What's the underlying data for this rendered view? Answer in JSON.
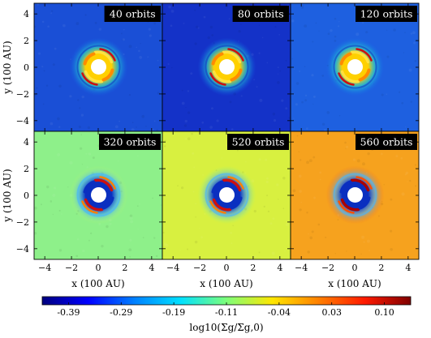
{
  "figure": {
    "panels": [
      {
        "label": "40 orbits",
        "background": "#1a4fd6",
        "ring": [
          [
            "#ffd000",
            1
          ],
          [
            "#22e0d0",
            0.6
          ],
          [
            "#1166ee",
            0.2
          ]
        ],
        "bands": [
          [
            "#ffe040",
            "#cc1010"
          ],
          [
            "#ff8c00",
            "#1530c0"
          ]
        ]
      },
      {
        "label": "80 orbits",
        "background": "#1432c8",
        "ring": [
          [
            "#ffd000",
            1
          ],
          [
            "#22e0d0",
            0.6
          ],
          [
            "#1166ee",
            0.2
          ]
        ],
        "bands": [
          [
            "#ffe040",
            "#cc1010"
          ],
          [
            "#ff8c00",
            "#1530c0"
          ]
        ]
      },
      {
        "label": "120 orbits",
        "background": "#1e60e0",
        "ring": [
          [
            "#ffd000",
            1
          ],
          [
            "#22e0d0",
            0.6
          ],
          [
            "#1166ee",
            0.2
          ]
        ],
        "bands": [
          [
            "#ffe040",
            "#cc1010"
          ],
          [
            "#ff8c00",
            "#1530c0"
          ]
        ]
      },
      {
        "label": "320 orbits",
        "background": "#8ef08a",
        "ring": [
          [
            "#0a2fc0",
            1
          ],
          [
            "#46b0ff",
            0.6
          ],
          [
            "#c8ff5a",
            0.3
          ]
        ],
        "bands": [
          [
            "#cc1010",
            "#ff8000"
          ],
          [
            "#0a2fc0",
            "#46b0ff"
          ]
        ]
      },
      {
        "label": "520 orbits",
        "background": "#d8f040",
        "ring": [
          [
            "#0a2fc0",
            1
          ],
          [
            "#46b0ff",
            0.6
          ],
          [
            "#a0ff70",
            0.3
          ]
        ],
        "bands": [
          [
            "#cc1010",
            "#ff8000"
          ],
          [
            "#0a2fc0",
            "#46b0ff"
          ]
        ]
      },
      {
        "label": "560 orbits",
        "background": "#f6a21e",
        "ring": [
          [
            "#0a2fc0",
            1
          ],
          [
            "#46b0ff",
            0.6
          ],
          [
            "#ff6010",
            0.35
          ]
        ],
        "bands": [
          [
            "#aa0000",
            "#ff5000"
          ],
          [
            "#0a2fc0",
            "#46b0ff"
          ]
        ]
      }
    ],
    "x_ticks": [
      "−4",
      "−2",
      "0",
      "2",
      "4"
    ],
    "y_ticks": [
      "4",
      "2",
      "0",
      "−2",
      "−4"
    ],
    "x_label": "x (100 AU)",
    "y_label": "y (100 AU)",
    "colorbar": {
      "ticks": [
        "-0.39",
        "-0.29",
        "-0.19",
        "-0.11",
        "-0.04",
        "0.03",
        "0.10"
      ],
      "label": "log10(Σg/Σg,0)",
      "stops": [
        "#00007f",
        "#0000ff",
        "#0080ff",
        "#00e0ff",
        "#7dff7a",
        "#ffe600",
        "#ff8000",
        "#ff1a00",
        "#7f0000"
      ]
    }
  }
}
